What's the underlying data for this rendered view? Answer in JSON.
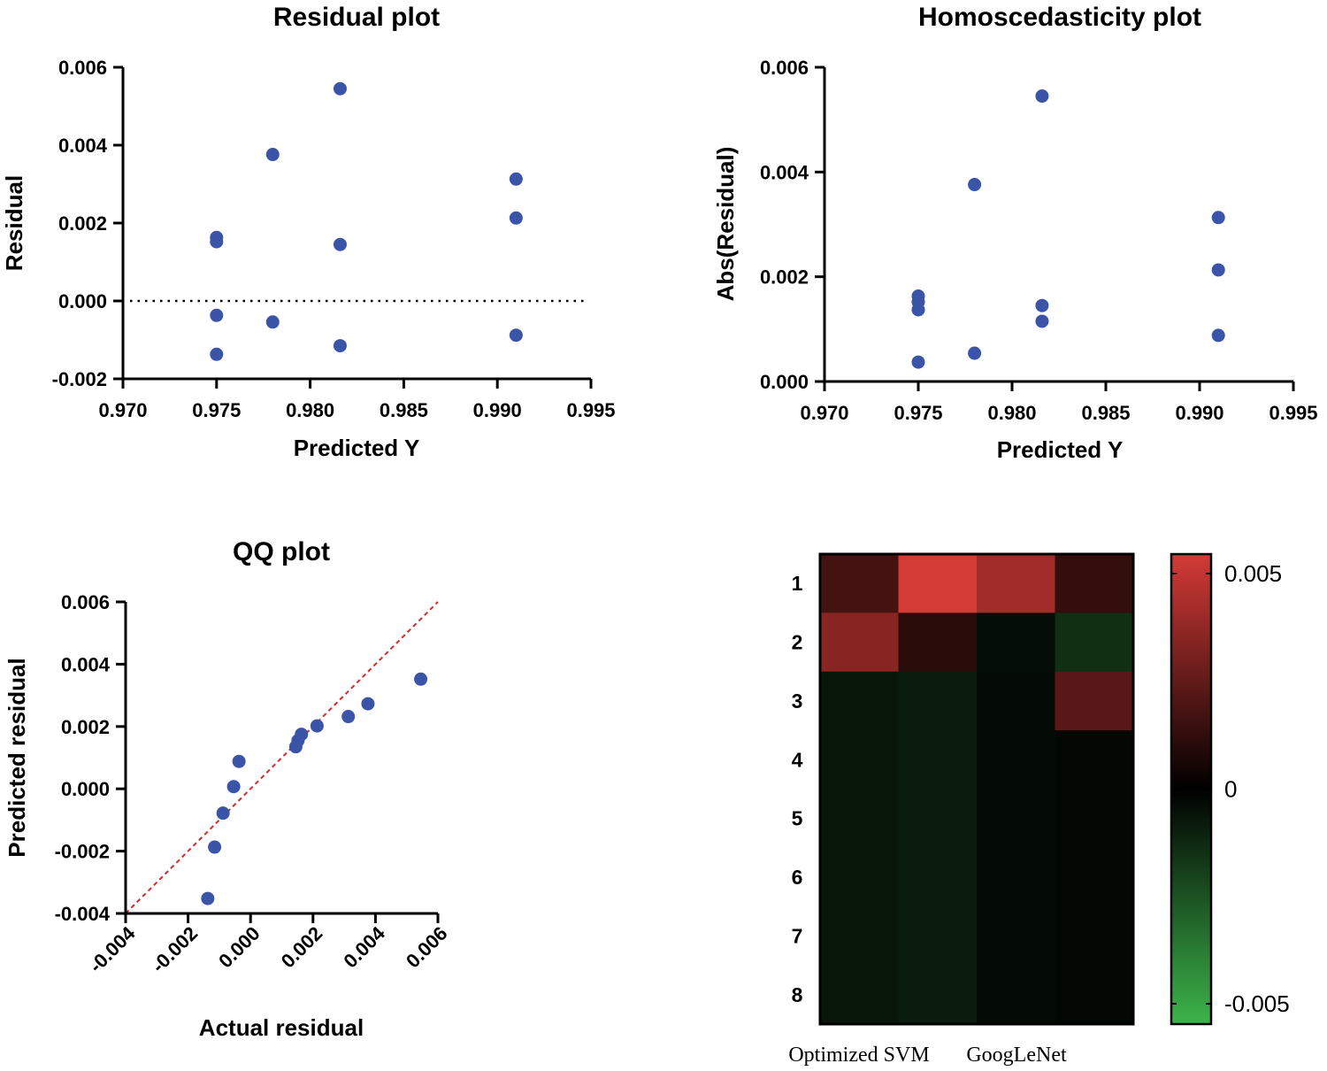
{
  "colors": {
    "point": "#3a54a8",
    "ref_line": "#d62a2a",
    "heat_high": "#d43a36",
    "heat_zero": "#000000",
    "heat_low": "#3cb44a"
  },
  "chart_data": [
    {
      "id": "residual",
      "type": "scatter",
      "title": "Residual plot",
      "xlabel": "Predicted Y",
      "ylabel": "Residual",
      "xlim": [
        0.97,
        0.995
      ],
      "ylim": [
        -0.002,
        0.006
      ],
      "xticks": [
        "0.970",
        "0.975",
        "0.980",
        "0.985",
        "0.990",
        "0.995"
      ],
      "yticks": [
        "-0.002",
        "0.000",
        "0.002",
        "0.004",
        "0.006"
      ],
      "reference_line": {
        "style": "dotted",
        "y": 0
      },
      "points": [
        {
          "x": 0.975,
          "y": 0.00163
        },
        {
          "x": 0.975,
          "y": 0.00152
        },
        {
          "x": 0.975,
          "y": -0.00037
        },
        {
          "x": 0.975,
          "y": -0.00137
        },
        {
          "x": 0.978,
          "y": 0.00376
        },
        {
          "x": 0.978,
          "y": -0.00054
        },
        {
          "x": 0.9816,
          "y": 0.00545
        },
        {
          "x": 0.9816,
          "y": 0.00145
        },
        {
          "x": 0.9816,
          "y": -0.00115
        },
        {
          "x": 0.991,
          "y": 0.00313
        },
        {
          "x": 0.991,
          "y": 0.00213
        },
        {
          "x": 0.991,
          "y": -0.00088
        }
      ]
    },
    {
      "id": "homoscedasticity",
      "type": "scatter",
      "title": "Homoscedasticity plot",
      "xlabel": "Predicted Y",
      "ylabel": "Abs(Residual)",
      "xlim": [
        0.97,
        0.995
      ],
      "ylim": [
        0.0,
        0.006
      ],
      "xticks": [
        "0.970",
        "0.975",
        "0.980",
        "0.985",
        "0.990",
        "0.995"
      ],
      "yticks": [
        "0.000",
        "0.002",
        "0.004",
        "0.006"
      ],
      "points": [
        {
          "x": 0.975,
          "y": 0.00163
        },
        {
          "x": 0.975,
          "y": 0.00152
        },
        {
          "x": 0.975,
          "y": 0.00137
        },
        {
          "x": 0.975,
          "y": 0.00037
        },
        {
          "x": 0.978,
          "y": 0.00376
        },
        {
          "x": 0.978,
          "y": 0.00054
        },
        {
          "x": 0.9816,
          "y": 0.00545
        },
        {
          "x": 0.9816,
          "y": 0.00145
        },
        {
          "x": 0.9816,
          "y": 0.00115
        },
        {
          "x": 0.991,
          "y": 0.00313
        },
        {
          "x": 0.991,
          "y": 0.00213
        },
        {
          "x": 0.991,
          "y": 0.00088
        }
      ]
    },
    {
      "id": "qq",
      "type": "scatter",
      "title": "QQ plot",
      "xlabel": "Actual residual",
      "ylabel": "Predicted residual",
      "xlim": [
        -0.004,
        0.006
      ],
      "ylim": [
        -0.004,
        0.006
      ],
      "xticks": [
        "-0.004",
        "-0.002",
        "0.000",
        "0.002",
        "0.004",
        "0.006"
      ],
      "yticks": [
        "-0.004",
        "-0.002",
        "0.000",
        "0.002",
        "0.004",
        "0.006"
      ],
      "reference_line": {
        "style": "dashed",
        "slope": 1,
        "intercept": 0
      },
      "points": [
        {
          "x": -0.00137,
          "y": -0.00352
        },
        {
          "x": -0.00115,
          "y": -0.00187
        },
        {
          "x": -0.00088,
          "y": -0.00078
        },
        {
          "x": -0.00054,
          "y": 7e-05
        },
        {
          "x": -0.00037,
          "y": 0.00088
        },
        {
          "x": 0.00145,
          "y": 0.00135
        },
        {
          "x": 0.00152,
          "y": 0.00155
        },
        {
          "x": 0.00163,
          "y": 0.00175
        },
        {
          "x": 0.00213,
          "y": 0.00202
        },
        {
          "x": 0.00313,
          "y": 0.00232
        },
        {
          "x": 0.00376,
          "y": 0.00273
        },
        {
          "x": 0.00545,
          "y": 0.00352
        }
      ]
    },
    {
      "id": "heatmap",
      "type": "heatmap",
      "row_labels": [
        "1",
        "2",
        "3",
        "4",
        "5",
        "6",
        "7",
        "8"
      ],
      "col_labels": [
        "Optimized SVM",
        "GoogLeNet"
      ],
      "n_cols": 4,
      "vmin": -0.005,
      "vmax": 0.005,
      "colorbar_ticks": [
        "0.005",
        "0",
        "-0.005"
      ],
      "values": [
        [
          0.0016,
          0.0055,
          0.0038,
          0.0012
        ],
        [
          0.0032,
          0.001,
          -0.0004,
          -0.0013
        ],
        [
          -0.0006,
          -0.0008,
          -0.0003,
          0.0021
        ],
        [
          -0.0006,
          -0.0008,
          -0.0003,
          -0.0002
        ],
        [
          -0.0006,
          -0.0008,
          -0.0003,
          -0.0002
        ],
        [
          -0.0006,
          -0.0008,
          -0.0003,
          -0.0002
        ],
        [
          -0.0006,
          -0.0008,
          -0.0003,
          -0.0002
        ],
        [
          -0.0006,
          -0.0008,
          -0.0003,
          -0.0002
        ]
      ]
    }
  ]
}
